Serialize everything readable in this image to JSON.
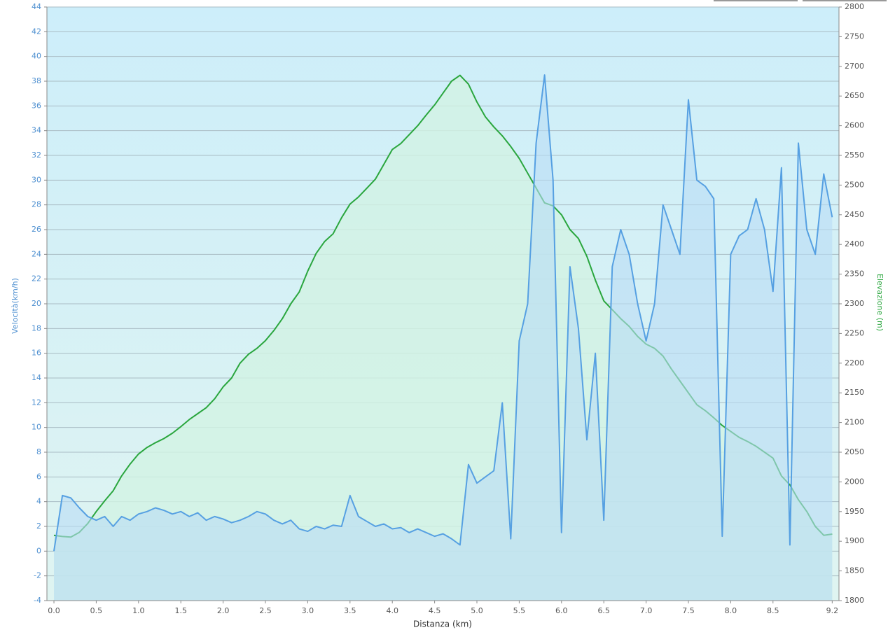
{
  "chart_data": {
    "type": "line",
    "x_label": "Distanza  (km)",
    "y_label": "Velocità(km/h)",
    "y2_label": "Elevazione (m)",
    "x": [
      0.0,
      0.1,
      0.2,
      0.3,
      0.4,
      0.5,
      0.6,
      0.7,
      0.8,
      0.9,
      1.0,
      1.1,
      1.2,
      1.3,
      1.4,
      1.5,
      1.6,
      1.7,
      1.8,
      1.9,
      2.0,
      2.1,
      2.2,
      2.3,
      2.4,
      2.5,
      2.6,
      2.7,
      2.8,
      2.9,
      3.0,
      3.1,
      3.2,
      3.3,
      3.4,
      3.5,
      3.6,
      3.7,
      3.8,
      3.9,
      4.0,
      4.1,
      4.2,
      4.3,
      4.4,
      4.5,
      4.6,
      4.7,
      4.8,
      4.9,
      5.0,
      5.1,
      5.2,
      5.3,
      5.4,
      5.5,
      5.6,
      5.7,
      5.8,
      5.9,
      6.0,
      6.1,
      6.2,
      6.3,
      6.4,
      6.5,
      6.6,
      6.7,
      6.8,
      6.9,
      7.0,
      7.1,
      7.2,
      7.3,
      7.4,
      7.5,
      7.6,
      7.7,
      7.8,
      7.9,
      8.0,
      8.1,
      8.2,
      8.3,
      8.4,
      8.5,
      8.6,
      8.7,
      8.8,
      8.9,
      9.0,
      9.1,
      9.2
    ],
    "series": [
      {
        "color": "#56a0e2",
        "fill": "#b9dcf5",
        "area": true,
        "values": [
          0,
          4.5,
          4.3,
          3.5,
          2.8,
          2.5,
          2.8,
          2.0,
          2.8,
          2.5,
          3.0,
          3.2,
          3.5,
          3.3,
          3.0,
          3.2,
          2.8,
          3.1,
          2.5,
          2.8,
          2.6,
          2.3,
          2.5,
          2.8,
          3.2,
          3.0,
          2.5,
          2.2,
          2.5,
          1.8,
          1.6,
          2.0,
          1.8,
          2.1,
          2.0,
          4.5,
          2.8,
          2.4,
          2.0,
          2.2,
          1.8,
          1.9,
          1.5,
          1.8,
          1.5,
          1.2,
          1.4,
          1.0,
          0.5,
          7.0,
          5.5,
          6.0,
          6.5,
          12.0,
          1.0,
          17.0,
          20.0,
          33.0,
          38.5,
          30.0,
          1.5,
          23.0,
          18.0,
          9.0,
          16.0,
          2.5,
          23.0,
          26.0,
          24.0,
          20.0,
          17.0,
          20.0,
          28.0,
          26.0,
          24.0,
          36.5,
          30.0,
          29.5,
          28.5,
          1.2,
          24.0,
          25.5,
          26.0,
          28.5,
          26.0,
          21.0,
          31.0,
          0.5,
          33.0,
          26.0,
          24.0,
          30.5,
          27.0
        ]
      },
      {
        "color": "#2aa63e",
        "fill": "#d2f3e4",
        "area": true,
        "axis": "y2",
        "values": [
          1910,
          1908,
          1907,
          1915,
          1930,
          1950,
          1968,
          1985,
          2010,
          2030,
          2047,
          2058,
          2066,
          2073,
          2082,
          2093,
          2105,
          2115,
          2125,
          2140,
          2160,
          2175,
          2200,
          2215,
          2225,
          2238,
          2255,
          2275,
          2300,
          2320,
          2355,
          2385,
          2405,
          2418,
          2445,
          2468,
          2480,
          2495,
          2510,
          2535,
          2560,
          2570,
          2585,
          2600,
          2618,
          2635,
          2655,
          2675,
          2685,
          2670,
          2640,
          2615,
          2598,
          2583,
          2565,
          2545,
          2520,
          2495,
          2470,
          2465,
          2450,
          2425,
          2410,
          2380,
          2340,
          2305,
          2290,
          2275,
          2262,
          2245,
          2232,
          2225,
          2212,
          2190,
          2170,
          2150,
          2130,
          2120,
          2108,
          2095,
          2085,
          2075,
          2068,
          2060,
          2050,
          2040,
          2010,
          1995,
          1970,
          1950,
          1925,
          1910,
          1912
        ]
      }
    ],
    "xlim": [
      -0.083,
      9.28
    ],
    "xticks": [
      {
        "value": 0,
        "label": "0.0"
      },
      0.5,
      {
        "value": 1,
        "label": "1.0"
      },
      1.5,
      {
        "value": 2,
        "label": "2.0"
      },
      2.5,
      {
        "value": 3,
        "label": "3.0"
      },
      3.5,
      {
        "value": 4,
        "label": "4.0"
      },
      4.5,
      {
        "value": 5,
        "label": "5.0"
      },
      5.5,
      {
        "value": 6,
        "label": "6.0"
      },
      6.5,
      {
        "value": 7,
        "label": "7.0"
      },
      7.5,
      {
        "value": 8,
        "label": "8.0"
      },
      8.5,
      9.2
    ],
    "ylim": [
      -4,
      44
    ],
    "yticks": [
      -4,
      -2,
      0,
      2,
      4,
      6,
      8,
      10,
      12,
      14,
      16,
      18,
      20,
      22,
      24,
      26,
      28,
      30,
      32,
      34,
      36,
      38,
      40,
      42,
      44
    ],
    "y2lim": [
      1800,
      2800
    ],
    "y2ticks": [
      1800,
      1850,
      1900,
      1950,
      2000,
      2050,
      2100,
      2150,
      2200,
      2250,
      2300,
      2350,
      2400,
      2450,
      2500,
      2550,
      2600,
      2650,
      2700,
      2750,
      2800
    ],
    "grid": true
  }
}
